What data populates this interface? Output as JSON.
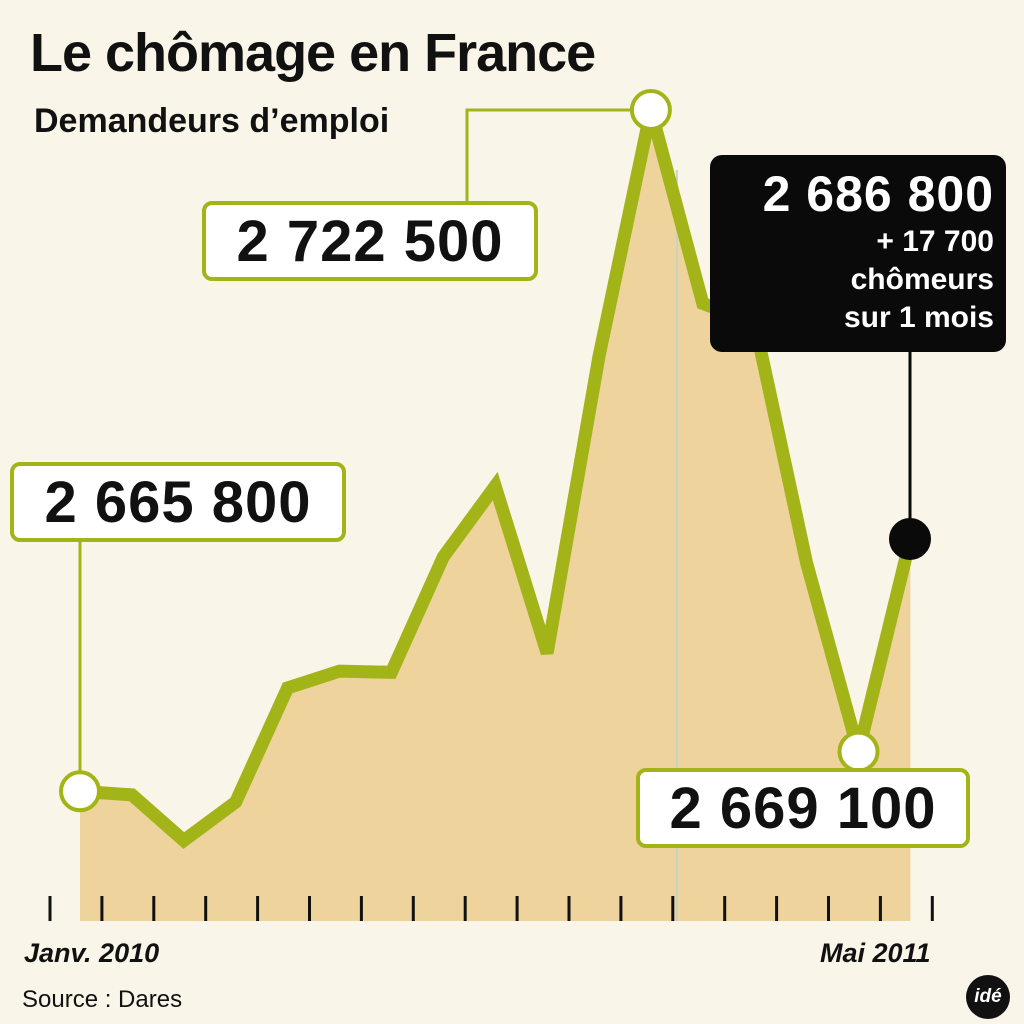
{
  "title": "Le chômage en France",
  "subtitle": "Demandeurs d’emploi",
  "source": "Source : Dares",
  "logo_text": "idé",
  "colors": {
    "background": "#faf5e9",
    "line": "#a3b418",
    "area": "#ebcd8e",
    "box_dark": "#0a0a0a",
    "text": "#111111"
  },
  "chart_data": {
    "type": "area",
    "title": "Le chômage en France",
    "subtitle": "Demandeurs d’emploi",
    "x": [
      "Janv. 2010",
      "",
      "",
      "",
      "",
      "",
      "",
      "",
      "",
      "",
      "",
      "",
      "",
      "",
      "",
      "",
      "Mai 2011"
    ],
    "x_labels_shown": {
      "start": "Janv. 2010",
      "end": "Mai 2011"
    },
    "values": [
      2665800,
      2665500,
      2661700,
      2664900,
      2674400,
      2675800,
      2675700,
      2685300,
      2691200,
      2677300,
      2702000,
      2722500,
      2706400,
      2704800,
      2684800,
      2669100,
      2686800
    ],
    "ylim": [
      2655000,
      2725000
    ],
    "grid": false,
    "annotations": {
      "start": {
        "value": "2 665 800"
      },
      "peak": {
        "value": "2 722 500"
      },
      "low": {
        "value": "2 669 100"
      },
      "last": {
        "value": "2 686 800",
        "lines": [
          "+ 17 700",
          "chômeurs",
          "sur 1 mois"
        ]
      }
    }
  }
}
